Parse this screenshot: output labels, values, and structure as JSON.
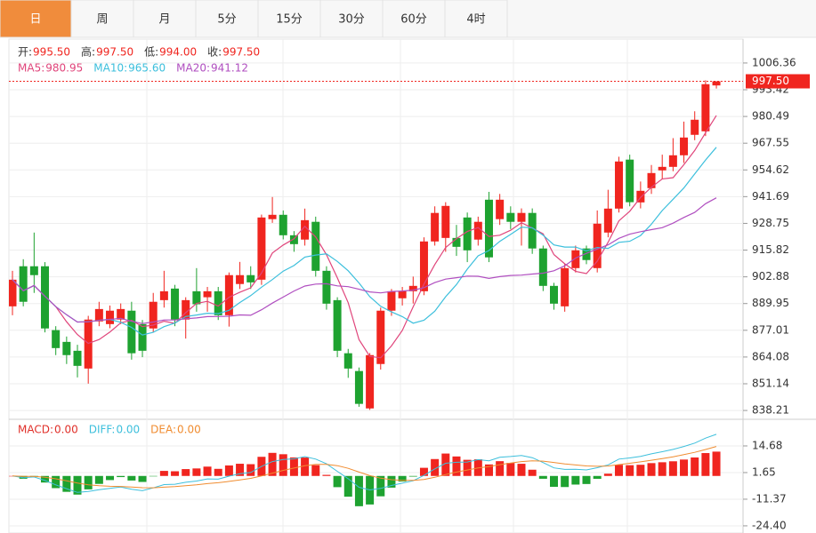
{
  "tabs": [
    "日",
    "周",
    "月",
    "5分",
    "15分",
    "30分",
    "60分",
    "4时"
  ],
  "active_tab": 0,
  "chart_data": {
    "type": "candlestick",
    "up_color": "#f0251f",
    "down_color": "#1ea230",
    "header": [
      {
        "name": "开:",
        "value": 995.5,
        "value_label": "995.50"
      },
      {
        "name": "高:",
        "value": 997.5,
        "value_label": "997.50"
      },
      {
        "name": "低:",
        "value": 994.0,
        "value_label": "994.00"
      },
      {
        "name": "收:",
        "value": 997.5,
        "value_label": "997.50"
      }
    ],
    "ma": [
      {
        "name": "MA5:",
        "value": 980.95,
        "value_label": "980.95",
        "color": "#e0457b"
      },
      {
        "name": "MA10:",
        "value": 965.6,
        "value_label": "965.60",
        "color": "#3cbfdc"
      },
      {
        "name": "MA20:",
        "value": 941.12,
        "value_label": "941.12",
        "color": "#b04fc0"
      }
    ],
    "ylim": [
      834.8,
      1017.5
    ],
    "yticks": [
      1006.36,
      993.42,
      980.49,
      967.55,
      954.62,
      941.69,
      928.75,
      915.82,
      902.88,
      889.95,
      877.01,
      864.08,
      851.14,
      838.21
    ],
    "candles": [
      [
        888.6,
        905.8,
        884.3,
        901.5
      ],
      [
        908.0,
        911.4,
        888.6,
        890.8
      ],
      [
        908.0,
        924.3,
        895.1,
        903.7
      ],
      [
        908.0,
        910.0,
        876.0,
        877.9
      ],
      [
        877.1,
        879.0,
        865.0,
        868.4
      ],
      [
        871.4,
        874.0,
        860.7,
        865.0
      ],
      [
        867.1,
        870.0,
        854.2,
        859.8
      ],
      [
        858.5,
        884.0,
        851.2,
        882.2
      ],
      [
        881.3,
        890.8,
        879.0,
        887.3
      ],
      [
        880.0,
        889.0,
        878.0,
        886.5
      ],
      [
        882.2,
        890.0,
        880.0,
        887.3
      ],
      [
        886.5,
        890.8,
        862.8,
        865.9
      ],
      [
        880.0,
        882.0,
        864.0,
        867.1
      ],
      [
        877.9,
        895.1,
        876.0,
        890.8
      ],
      [
        891.6,
        905.8,
        888.0,
        895.9
      ],
      [
        897.2,
        899.0,
        879.0,
        882.2
      ],
      [
        882.2,
        893.0,
        873.0,
        891.6
      ],
      [
        895.9,
        907.1,
        886.0,
        889.6
      ],
      [
        893.0,
        898.0,
        886.0,
        895.9
      ],
      [
        895.9,
        898.0,
        882.0,
        884.3
      ],
      [
        884.3,
        905.0,
        878.8,
        903.7
      ],
      [
        899.4,
        910.1,
        897.0,
        903.7
      ],
      [
        903.7,
        908.0,
        897.0,
        900.2
      ],
      [
        901.5,
        933.0,
        899.0,
        931.6
      ],
      [
        930.8,
        941.5,
        929.0,
        932.9
      ],
      [
        932.9,
        935.0,
        921.0,
        923.0
      ],
      [
        923.0,
        925.0,
        915.0,
        918.7
      ],
      [
        920.9,
        935.9,
        918.0,
        930.3
      ],
      [
        929.5,
        932.0,
        903.0,
        905.8
      ],
      [
        905.8,
        908.0,
        887.0,
        889.9
      ],
      [
        891.6,
        893.0,
        864.0,
        867.1
      ],
      [
        865.9,
        868.0,
        854.0,
        858.5
      ],
      [
        857.3,
        859.0,
        840.0,
        841.4
      ],
      [
        839.2,
        866.0,
        838.5,
        865.0
      ],
      [
        860.7,
        888.0,
        858.0,
        886.5
      ],
      [
        886.5,
        897.0,
        884.0,
        895.9
      ],
      [
        892.5,
        898.0,
        889.0,
        895.9
      ],
      [
        895.9,
        903.0,
        890.0,
        898.5
      ],
      [
        895.9,
        922.0,
        894.0,
        920.0
      ],
      [
        920.0,
        937.0,
        918.0,
        933.8
      ],
      [
        921.7,
        939.0,
        915.0,
        937.2
      ],
      [
        921.7,
        928.0,
        913.0,
        917.4
      ],
      [
        931.6,
        934.0,
        910.0,
        915.7
      ],
      [
        920.9,
        932.0,
        918.0,
        929.5
      ],
      [
        940.2,
        944.0,
        910.0,
        912.3
      ],
      [
        930.8,
        943.0,
        928.0,
        940.2
      ],
      [
        933.8,
        937.0,
        926.0,
        929.5
      ],
      [
        929.5,
        936.0,
        918.0,
        933.8
      ],
      [
        933.8,
        936.0,
        914.0,
        916.6
      ],
      [
        916.6,
        918.0,
        896.0,
        898.5
      ],
      [
        898.5,
        900.0,
        887.0,
        889.9
      ],
      [
        888.6,
        909.0,
        886.0,
        907.1
      ],
      [
        907.1,
        918.0,
        905.0,
        915.7
      ],
      [
        916.6,
        918.0,
        909.0,
        911.0
      ],
      [
        907.1,
        935.0,
        905.0,
        928.6
      ],
      [
        924.3,
        945.0,
        922.0,
        935.9
      ],
      [
        935.9,
        961.0,
        934.0,
        958.7
      ],
      [
        959.6,
        962.0,
        937.0,
        939.0
      ],
      [
        938.9,
        949.0,
        936.0,
        944.5
      ],
      [
        945.8,
        957.0,
        943.0,
        953.1
      ],
      [
        954.4,
        962.0,
        950.0,
        956.1
      ],
      [
        956.1,
        970.0,
        954.0,
        961.7
      ],
      [
        961.7,
        978.0,
        958.0,
        970.3
      ],
      [
        971.6,
        983.0,
        969.0,
        978.9
      ],
      [
        973.3,
        998.0,
        971.0,
        996.1
      ],
      [
        995.5,
        997.5,
        994.0,
        997.5
      ]
    ],
    "macd_labels": [
      {
        "name": "MACD:",
        "value": 0,
        "value_label": "0.00",
        "color": "#e0302a"
      },
      {
        "name": "DIFF:",
        "value": 0,
        "value_label": "0.00",
        "color": "#3cbfdc"
      },
      {
        "name": "DEA:",
        "value": 0,
        "value_label": "0.00",
        "color": "#f08c30"
      }
    ],
    "y2lim": [
      -27.9,
      26.4
    ],
    "y2ticks": [
      14.68,
      1.65,
      -11.37,
      {
        "value": -24.4,
        "label": "-24.40"
      }
    ]
  }
}
